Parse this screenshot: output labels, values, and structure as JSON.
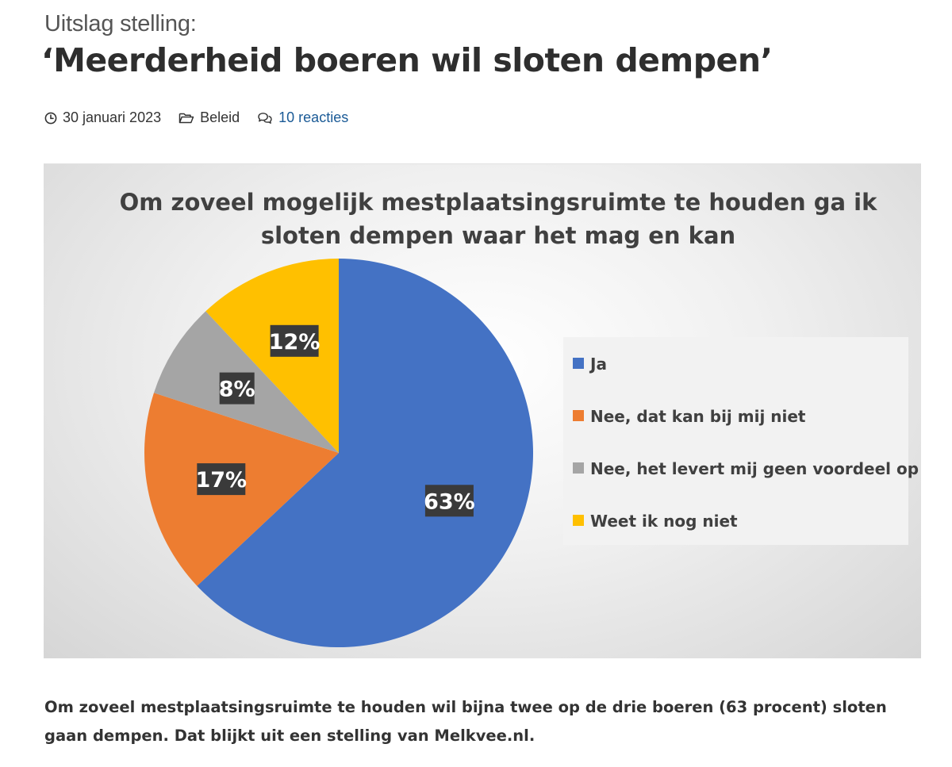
{
  "article": {
    "kicker": "Uitslag stelling:",
    "headline": "‘Meerderheid boeren wil sloten dempen’",
    "date": "30 januari 2023",
    "category": "Beleid",
    "comments": "10 reacties",
    "intro": "Om zoveel mestplaatsingsruimte te houden wil bijna twee op de drie boeren (63 procent) sloten gaan dempen. Dat blijkt uit een stelling van Melkvee.nl."
  },
  "icons": {
    "date": "clock-icon",
    "category": "folder-icon",
    "comments": "comments-icon"
  },
  "chart_data": {
    "type": "pie",
    "title_lines": [
      "Om zoveel mogelijk mestplaatsingsruimte te houden ga ik",
      "sloten dempen waar het mag en kan"
    ],
    "slices": [
      {
        "label": "Ja",
        "value": 63,
        "display": "63%",
        "color": "#4472c4"
      },
      {
        "label": "Nee, dat kan bij mij niet",
        "value": 17,
        "display": "17%",
        "color": "#ed7d31"
      },
      {
        "label": "Nee, het levert mij geen voordeel op",
        "value": 8,
        "display": "8%",
        "color": "#a5a5a5"
      },
      {
        "label": "Weet ik nog niet",
        "value": 12,
        "display": "12%",
        "color": "#ffc000"
      }
    ],
    "start": "12 o'clock",
    "direction": "clockwise",
    "legend_position": "right",
    "data_labels": "percent, dark boxed"
  }
}
